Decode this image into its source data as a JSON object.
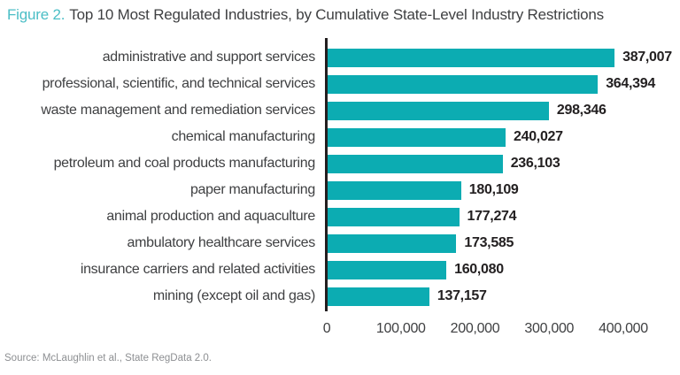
{
  "header": {
    "figure_label": "Figure 2.",
    "title": "Top 10 Most Regulated Industries, by Cumulative State-Level Industry Restrictions"
  },
  "chart_data": {
    "type": "bar",
    "orientation": "horizontal",
    "title": "Top 10 Most Regulated Industries, by Cumulative State-Level Industry Restrictions",
    "categories": [
      "administrative and support services",
      "professional, scientific, and technical services",
      "waste management and remediation services",
      "chemical manufacturing",
      "petroleum and coal products manufacturing",
      "paper manufacturing",
      "animal production and aquaculture",
      "ambulatory healthcare services",
      "insurance carriers and related activities",
      "mining (except oil and gas)"
    ],
    "values": [
      387007,
      364394,
      298346,
      240027,
      236103,
      180109,
      177274,
      173585,
      160080,
      137157
    ],
    "value_labels": [
      "387,007",
      "364,394",
      "298,346",
      "240,027",
      "236,103",
      "180,109",
      "177,274",
      "173,585",
      "160,080",
      "137,157"
    ],
    "xlabel": "",
    "ylabel": "",
    "xlim": [
      0,
      400000
    ],
    "xticks": [
      0,
      100000,
      200000,
      300000,
      400000
    ],
    "xtick_labels": [
      "0",
      "100,000",
      "200,000",
      "300,000",
      "400,000"
    ],
    "grid": false,
    "legend": false,
    "bar_color": "#0cacb2"
  },
  "footer": {
    "source": "Source: McLaughlin et al., State RegData 2.0."
  },
  "colors": {
    "accent_teal": "#0cacb2",
    "title_teal": "#4bbec6",
    "text_dark": "#3f4042",
    "value_text": "#232021",
    "axis_line": "#231f20",
    "source_gray": "#8d8f92"
  }
}
